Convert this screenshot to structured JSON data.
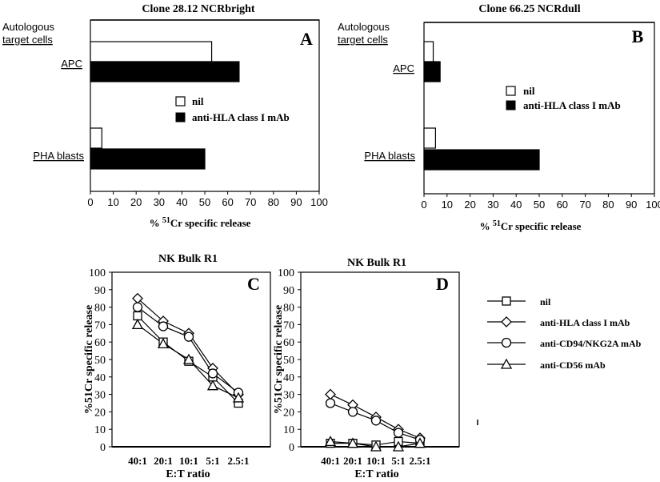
{
  "chart_data": [
    {
      "type": "bar",
      "panel_letter": "A",
      "title": "Clone 28.12  NCRbright",
      "xlabel_prefix": "% ",
      "xlabel_sup": "51",
      "xlabel_rest": "Cr specific release",
      "xlim": [
        0,
        100
      ],
      "xticks": [
        "0",
        "10",
        "20",
        "30",
        "40",
        "50",
        "60",
        "70",
        "80",
        "90",
        "100"
      ],
      "category_heading_line1": "Autologous",
      "category_heading_line2": "target cells",
      "categories": [
        "APC",
        "PHA blasts"
      ],
      "series": [
        {
          "name": "nil",
          "fill": "#ffffff",
          "values": [
            53,
            5
          ]
        },
        {
          "name": "anti-HLA class I mAb",
          "fill": "#000000",
          "values": [
            65,
            50
          ]
        }
      ],
      "legend_position": "middle-right"
    },
    {
      "type": "bar",
      "panel_letter": "B",
      "title": "Clone 66.25  NCRdull",
      "xlabel_prefix": "% ",
      "xlabel_sup": "51",
      "xlabel_rest": "Cr specific release",
      "xlim": [
        0,
        100
      ],
      "xticks": [
        "0",
        "10",
        "20",
        "30",
        "40",
        "50",
        "60",
        "70",
        "80",
        "90",
        "100"
      ],
      "category_heading_line1": "Autologous",
      "category_heading_line2": "target cells",
      "categories": [
        "APC",
        "PHA blasts"
      ],
      "series": [
        {
          "name": "nil",
          "fill": "#ffffff",
          "values": [
            4,
            5
          ]
        },
        {
          "name": "anti-HLA class I mAb",
          "fill": "#000000",
          "values": [
            7,
            50
          ]
        }
      ],
      "legend_position": "middle-right"
    },
    {
      "type": "line",
      "panel_letter": "C",
      "title": "NK Bulk R1",
      "xlabel": "E:T ratio",
      "ylabel": "%51Cr specific release",
      "ylim": [
        0,
        100
      ],
      "yticks": [
        "0",
        "10",
        "20",
        "30",
        "40",
        "50",
        "60",
        "70",
        "80",
        "90",
        "100"
      ],
      "categories": [
        "40:1",
        "20:1",
        "10:1",
        "5:1",
        "2.5:1"
      ],
      "series": [
        {
          "name": "nil",
          "marker": "square",
          "values": [
            75,
            60,
            49,
            40,
            25
          ]
        },
        {
          "name": "anti-HLA class I mAb",
          "marker": "diamond",
          "values": [
            85,
            72,
            65,
            45,
            30
          ]
        },
        {
          "name": "anti-CD94/NKG2A mAb",
          "marker": "circle",
          "values": [
            80,
            69,
            63,
            42,
            31
          ]
        },
        {
          "name": "anti-CD56 mAb",
          "marker": "triangle",
          "values": [
            70,
            59,
            50,
            35,
            28
          ]
        }
      ]
    },
    {
      "type": "line",
      "panel_letter": "D",
      "title": "NK Bulk R1",
      "xlabel": "E:T ratio",
      "ylabel": "%51Cr specific release",
      "ylim": [
        0,
        100
      ],
      "yticks": [
        "0",
        "10",
        "20",
        "30",
        "40",
        "50",
        "60",
        "70",
        "80",
        "90",
        "100"
      ],
      "categories": [
        "40:1",
        "20:1",
        "10:1",
        "5:1",
        "2.5:1"
      ],
      "series": [
        {
          "name": "nil",
          "marker": "square",
          "values": [
            2,
            2,
            1,
            3,
            2
          ]
        },
        {
          "name": "anti-HLA class I mAb",
          "marker": "diamond",
          "values": [
            30,
            24,
            17,
            10,
            5
          ]
        },
        {
          "name": "anti-CD94/NKG2A mAb",
          "marker": "circle",
          "values": [
            25,
            20,
            15,
            8,
            4
          ]
        },
        {
          "name": "anti-CD56 mAb",
          "marker": "triangle",
          "values": [
            3,
            2,
            0,
            0,
            2
          ]
        }
      ],
      "legend_position": "right"
    }
  ]
}
